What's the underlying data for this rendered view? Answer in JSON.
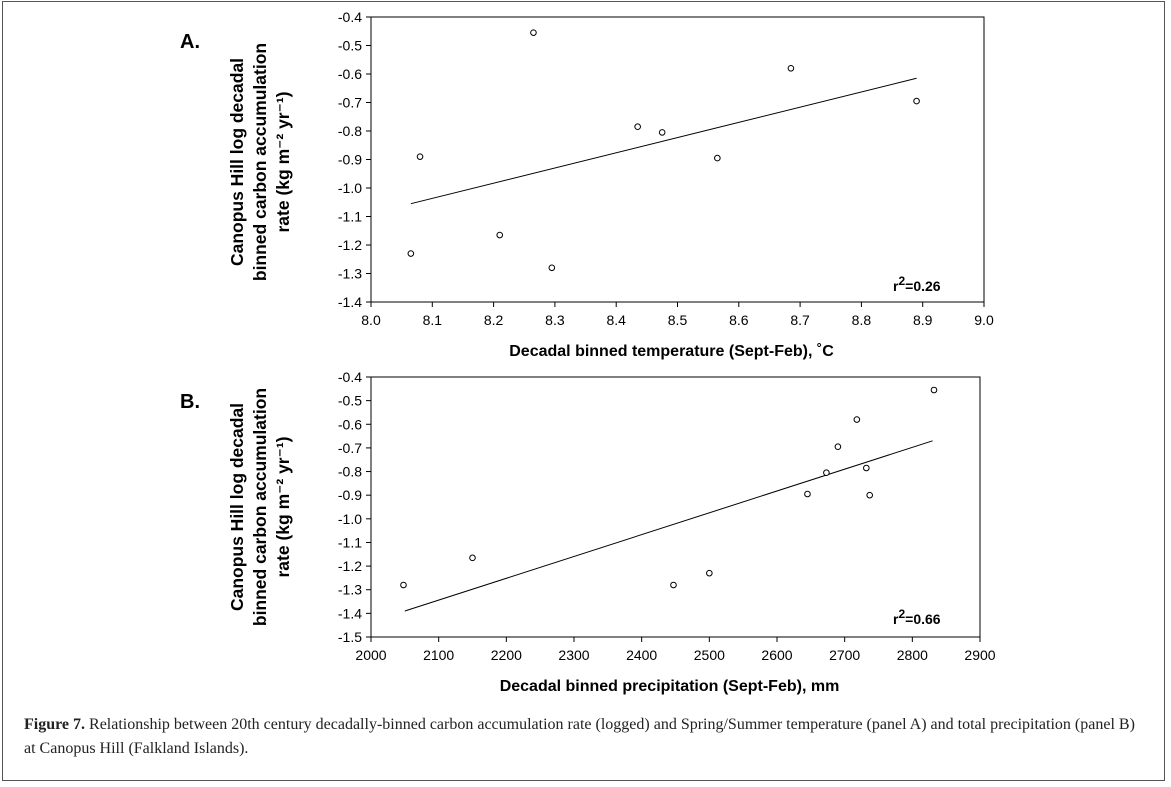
{
  "figure": {
    "caption_label": "Figure 7.",
    "caption_text": " Relationship between 20th century decadally-binned carbon accumulation rate (logged) and Spring/Summer temperature (panel A) and total precipitation (panel B) at Canopus Hill (Falkland Islands)."
  },
  "chart_data": [
    {
      "type": "scatter",
      "panel_label": "A.",
      "xlabel": "Decadal binned temperature (Sept-Feb), ˚C",
      "ylabel_lines": [
        "Canopus Hill log decadal",
        "binned carbon accumulation",
        "rate (kg m⁻² yr⁻¹)"
      ],
      "xlim": [
        8.0,
        9.0
      ],
      "ylim": [
        -1.4,
        -0.4
      ],
      "x_ticks": [
        "8.0",
        "8.1",
        "8.2",
        "8.3",
        "8.4",
        "8.5",
        "8.6",
        "8.7",
        "8.8",
        "8.9",
        "9.0"
      ],
      "y_ticks": [
        "-0.4",
        "-0.5",
        "-0.6",
        "-0.7",
        "-0.8",
        "-0.9",
        "-1.0",
        "-1.1",
        "-1.2",
        "-1.3",
        "-1.4"
      ],
      "points": [
        {
          "x": 8.065,
          "y": -1.23
        },
        {
          "x": 8.08,
          "y": -0.89
        },
        {
          "x": 8.21,
          "y": -1.165
        },
        {
          "x": 8.265,
          "y": -0.455
        },
        {
          "x": 8.295,
          "y": -1.28
        },
        {
          "x": 8.435,
          "y": -0.785
        },
        {
          "x": 8.475,
          "y": -0.805
        },
        {
          "x": 8.565,
          "y": -0.895
        },
        {
          "x": 8.685,
          "y": -0.58
        },
        {
          "x": 8.89,
          "y": -0.695
        }
      ],
      "fit_line": {
        "x": [
          8.065,
          8.89
        ],
        "y": [
          -1.055,
          -0.615
        ]
      },
      "r2_label": "r",
      "r2_sup": "2",
      "r2_value": "=0.26"
    },
    {
      "type": "scatter",
      "panel_label": "B.",
      "xlabel": "Decadal binned precipitation (Sept-Feb), mm",
      "ylabel_lines": [
        "Canopus Hill log decadal",
        "binned carbon accumulation",
        "rate (kg m⁻² yr⁻¹)"
      ],
      "xlim": [
        2000,
        2900
      ],
      "ylim": [
        -1.5,
        -0.4
      ],
      "x_ticks": [
        "2000",
        "2100",
        "2200",
        "2300",
        "2400",
        "2500",
        "2600",
        "2700",
        "2800",
        "2900"
      ],
      "y_ticks": [
        "-0.4",
        "-0.5",
        "-0.6",
        "-0.7",
        "-0.8",
        "-0.9",
        "-1.0",
        "-1.1",
        "-1.2",
        "-1.3",
        "-1.4",
        "-1.5"
      ],
      "points": [
        {
          "x": 2048,
          "y": -1.28
        },
        {
          "x": 2150,
          "y": -1.165
        },
        {
          "x": 2447,
          "y": -1.28
        },
        {
          "x": 2500,
          "y": -1.23
        },
        {
          "x": 2645,
          "y": -0.895
        },
        {
          "x": 2673,
          "y": -0.805
        },
        {
          "x": 2690,
          "y": -0.695
        },
        {
          "x": 2718,
          "y": -0.58
        },
        {
          "x": 2732,
          "y": -0.785
        },
        {
          "x": 2737,
          "y": -0.9
        },
        {
          "x": 2832,
          "y": -0.455
        }
      ],
      "fit_line": {
        "x": [
          2050,
          2830
        ],
        "y": [
          -1.39,
          -0.67
        ]
      },
      "r2_label": "r",
      "r2_sup": "2",
      "r2_value": "=0.66"
    }
  ]
}
